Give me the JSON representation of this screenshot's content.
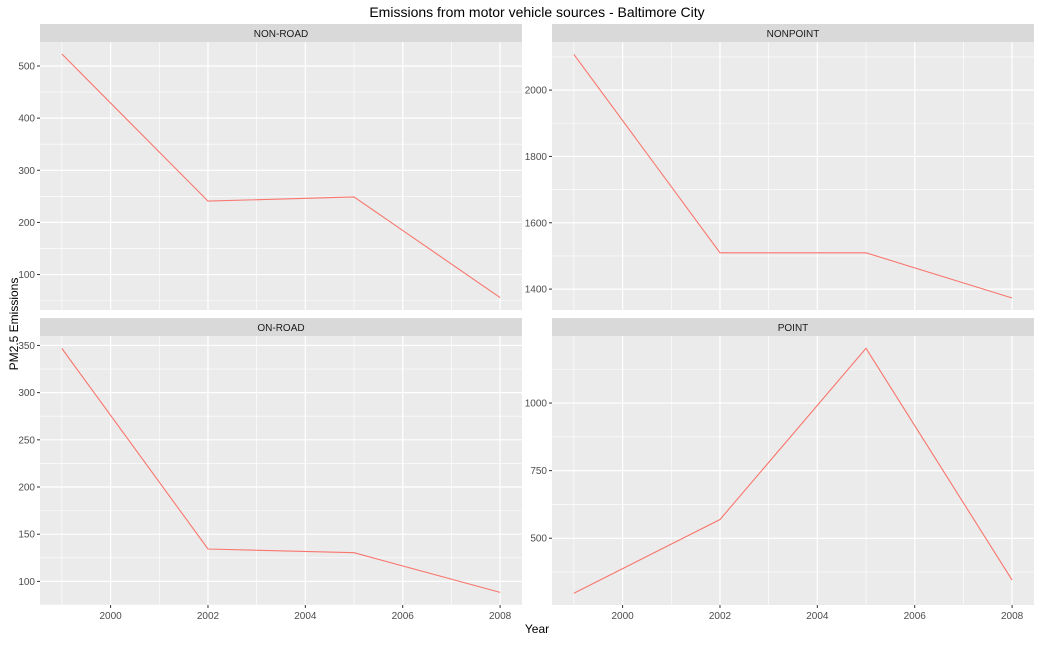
{
  "chart_data": {
    "type": "line",
    "title": "Emissions from motor vehicle sources - Baltimore City",
    "xlabel": "Year",
    "ylabel": "PM2.5 Emissions",
    "grid": true,
    "legend": "none",
    "line_color": "#F8766D",
    "panel_bg": "#EBEBEB",
    "strip_bg": "#D9D9D9",
    "x": [
      1999,
      2002,
      2005,
      2008
    ],
    "x_ticks": [
      2000,
      2002,
      2004,
      2006,
      2008
    ],
    "xlim": [
      1998.55,
      2008.45
    ],
    "facets": [
      {
        "label": "NON-ROAD",
        "values": [
          522.9,
          240.8,
          248.9,
          55.8
        ],
        "ylim": [
          32,
          546
        ],
        "y_ticks": [
          100,
          200,
          300,
          400,
          500
        ]
      },
      {
        "label": "NONPOINT",
        "values": [
          2107.6,
          1509.5,
          1509.5,
          1373.2
        ],
        "ylim": [
          1337,
          2145
        ],
        "y_ticks": [
          1400,
          1600,
          1800,
          2000
        ]
      },
      {
        "label": "ON-ROAD",
        "values": [
          346.8,
          134.3,
          130.4,
          88.3
        ],
        "ylim": [
          75,
          360
        ],
        "y_ticks": [
          100,
          150,
          200,
          250,
          300,
          350
        ]
      },
      {
        "label": "POINT",
        "values": [
          296.8,
          569.3,
          1202.5,
          344.98
        ],
        "ylim": [
          253,
          1248
        ],
        "y_ticks": [
          500,
          750,
          1000
        ]
      }
    ]
  }
}
